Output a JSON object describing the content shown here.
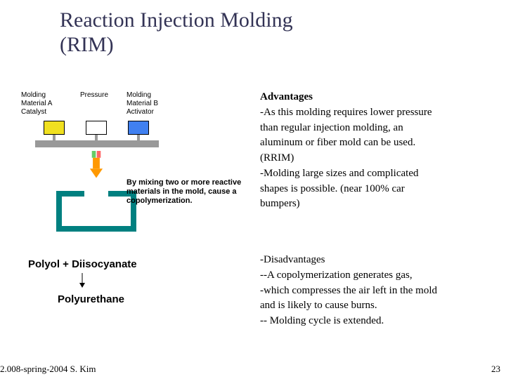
{
  "title_line1": "Reaction Injection Molding",
  "title_line2": "(RIM)",
  "diagram": {
    "label_a": "Molding\nMaterial A\nCatalyst",
    "label_pressure": "Pressure",
    "label_b": "Molding\nMaterial B\nActivator",
    "caption": "By mixing two or more reactive materials in the mold, cause a copolymerization.",
    "colors": {
      "tank_a": "#f0e020",
      "tank_p": "#ffffff",
      "tank_b": "#4080f0",
      "plate": "#999999",
      "mold": "#008080",
      "arrow": "#ff9900",
      "mixer_green": "#66cc66",
      "mixer_red": "#ff6666"
    }
  },
  "advantages": {
    "heading": "Advantages",
    "lines": [
      "-As this molding requires lower pressure",
      "than regular injection molding, an",
      "aluminum or fiber mold can be used.",
      "(RRIM)",
      "-Molding large sizes and complicated",
      "shapes is possible. (near 100% car",
      "bumpers)"
    ]
  },
  "disadvantages": {
    "heading": "-Disadvantages",
    "lines": [
      "--A copolymerization generates gas,",
      "-which compresses the air left in the mold",
      "and is likely to cause burns.",
      "-- Molding cycle is extended."
    ]
  },
  "reaction": {
    "reagents": "Polyol + Diisocyanate",
    "product": "Polyurethane"
  },
  "footer": "2.008-spring-2004  S. Kim",
  "page": "23"
}
